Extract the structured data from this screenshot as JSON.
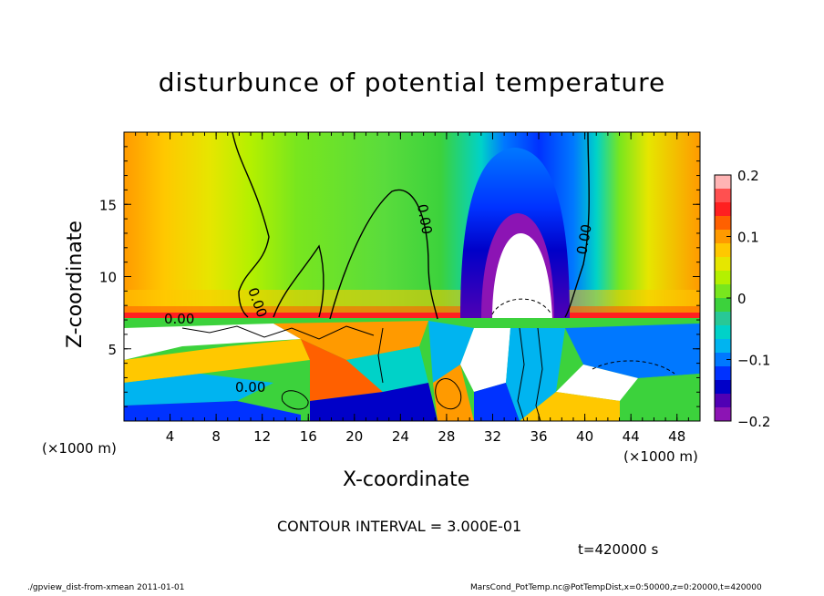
{
  "chart_data": {
    "type": "heatmap",
    "title": "disturbunce of potential temperature",
    "xlabel": "X-coordinate",
    "ylabel": "Z-coordinate",
    "x_unit": "(×1000 m)",
    "x_unit_right": "(×1000 m)",
    "xlim": [
      0,
      50
    ],
    "ylim": [
      0,
      20
    ],
    "x_ticks": [
      4,
      8,
      12,
      16,
      20,
      24,
      28,
      32,
      36,
      40,
      44,
      48
    ],
    "y_ticks": [
      5,
      10,
      15
    ],
    "colorbar": {
      "range": [
        -0.2,
        0.2
      ],
      "ticks": [
        0.2,
        0.1,
        0,
        -0.1,
        -0.2
      ],
      "tick_labels": [
        "0.2",
        "0.1",
        "0",
        "−0.1",
        "−0.2"
      ],
      "colors": [
        "#ffb4b4",
        "#ff5050",
        "#ff2020",
        "#ff6000",
        "#ff9a00",
        "#ffc800",
        "#e6e600",
        "#b4f000",
        "#78e61e",
        "#3cd23c",
        "#28c896",
        "#00d2c8",
        "#00b4f0",
        "#0078ff",
        "#0032ff",
        "#0000c8",
        "#5000b4",
        "#8c14b4"
      ]
    },
    "contour_labels": [
      "0.00",
      "0.00",
      "0.00",
      "0.00",
      "0.00"
    ],
    "contour_interval": "CONTOUR INTERVAL = 3.000E-01",
    "grid": false
  },
  "annotations": {
    "time": "t=420000 s",
    "footer_left": "./gpview_dist-from-xmean  2011-01-01",
    "footer_right": "MarsCond_PotTemp.nc@PotTempDist,x=0:50000,z=0:20000,t=420000"
  }
}
